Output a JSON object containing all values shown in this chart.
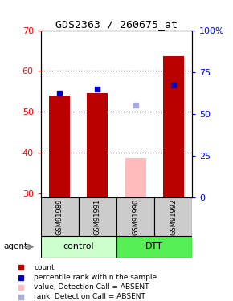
{
  "title": "GDS2363 / 260675_at",
  "samples": [
    "GSM91989",
    "GSM91991",
    "GSM91990",
    "GSM91992"
  ],
  "bar_values": [
    54.0,
    54.5,
    null,
    63.5
  ],
  "bar_color": "#bb0000",
  "blue_markers": [
    54.5,
    55.5,
    null,
    56.5
  ],
  "blue_color": "#0000cc",
  "absent_bar_value": 38.5,
  "absent_bar_color": "#ffbbbb",
  "absent_rank_value": 51.5,
  "absent_rank_color": "#aaaadd",
  "absent_sample_index": 2,
  "ylim_left": [
    29,
    70
  ],
  "ylim_right": [
    0,
    100
  ],
  "yticks_left": [
    30,
    40,
    50,
    60,
    70
  ],
  "yticks_right": [
    0,
    25,
    50,
    75,
    100
  ],
  "ytick_labels_right": [
    "0",
    "25",
    "50",
    "75",
    "100%"
  ],
  "control_color": "#ccffcc",
  "dtt_color": "#55ee55",
  "bar_bottom": 29,
  "bar_width": 0.55,
  "grid_yticks": [
    40,
    50,
    60
  ],
  "legend_items": [
    {
      "label": "count",
      "color": "#bb0000"
    },
    {
      "label": "percentile rank within the sample",
      "color": "#0000cc"
    },
    {
      "label": "value, Detection Call = ABSENT",
      "color": "#ffbbbb"
    },
    {
      "label": "rank, Detection Call = ABSENT",
      "color": "#aaaadd"
    }
  ]
}
